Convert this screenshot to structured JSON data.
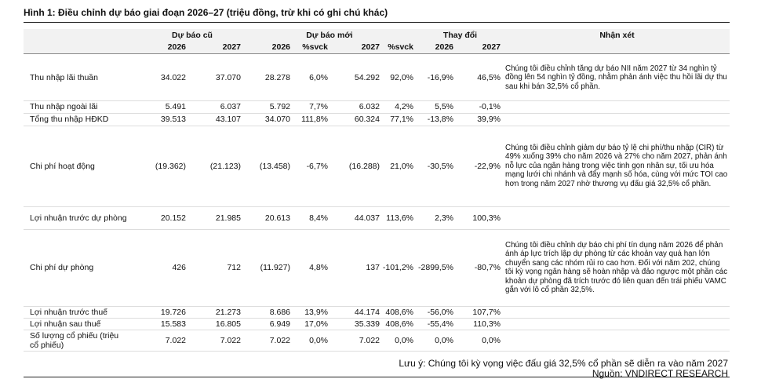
{
  "title": "Hình 1: Điều chỉnh dự báo giai đoạn 2026–27 (triệu đồng, trừ khi có ghi chú khác)",
  "table": {
    "groups": [
      "Dự báo cũ",
      "Dự báo mới",
      "Thay đổi",
      "Nhận xét"
    ],
    "subheaders": [
      "2026",
      "2027",
      "2026",
      "%svck",
      "2027",
      "%svck",
      "2026",
      "2027"
    ],
    "rows": [
      {
        "label": "Thu nhập lãi thuần",
        "cells": [
          "34.022",
          "37.070",
          "28.278",
          "6,0%",
          "54.292",
          "92,0%",
          "-16,9%",
          "46,5%"
        ],
        "comment": "Chúng tôi điều chỉnh tăng dự báo NII năm 2027 từ 34 nghìn tỷ đồng lên 54 nghìn tỷ đồng, nhằm phản ánh việc thu hồi lãi dự thu sau khi bán 32,5% cổ phần."
      },
      {
        "label": "Thu nhập ngoài lãi",
        "cells": [
          "5.491",
          "6.037",
          "5.792",
          "7,7%",
          "6.032",
          "4,2%",
          "5,5%",
          "-0,1%"
        ]
      },
      {
        "label": "Tổng thu nhập HĐKD",
        "cells": [
          "39.513",
          "43.107",
          "34.070",
          "111,8%",
          "60.324",
          "77,1%",
          "-13,8%",
          "39,9%"
        ]
      },
      {
        "label": "Chi phí hoạt động",
        "cells": [
          "(19.362)",
          "(21.123)",
          "(13.458)",
          "-6,7%",
          "(16.288)",
          "21,0%",
          "-30,5%",
          "-22,9%"
        ],
        "comment": "Chúng tôi điều chỉnh giảm dự báo tỷ lệ chi phí/thu nhập (CIR) từ 49% xuống 39% cho năm 2026 và 27% cho năm 2027, phản ánh nỗ lực của ngân hàng trong việc tinh gọn nhân sự, tối ưu hóa mạng lưới chi nhánh và đẩy mạnh số hóa, cùng với mức TOI cao hơn trong năm 2027 nhờ thương vụ đấu giá 32,5% cổ phần."
      },
      {
        "label": "Lợi nhuận trước dự phòng",
        "cells": [
          "20.152",
          "21.985",
          "20.613",
          "8,4%",
          "44.037",
          "113,6%",
          "2,3%",
          "100,3%"
        ]
      },
      {
        "label": "Chi phí dự phòng",
        "cells": [
          "426",
          "712",
          "(11.927)",
          "4,8%",
          "137",
          "-101,2%",
          "-2899,5%",
          "-80,7%"
        ],
        "comment": "Chúng tôi điều chỉnh dự báo chi phí tín dụng năm 2026 để phản ánh áp lực trích lập dự phòng từ các khoản vay quá hạn lớn chuyển sang các nhóm rủi ro cao hơn. Đối với năm 202, chúng tôi kỳ vọng ngân hàng sẽ hoàn nhập và đảo ngược một phần các khoản dự phòng đã trích trước đó liên quan đến trái phiếu VAMC gắn với lô cổ phần 32,5%."
      },
      {
        "label": "Lợi nhuận trước thuế",
        "cells": [
          "19.726",
          "21.273",
          "8.686",
          "13,9%",
          "44.174",
          "408,6%",
          "-56,0%",
          "107,7%"
        ]
      },
      {
        "label": "Lợi nhuận sau thuế",
        "cells": [
          "15.583",
          "16.805",
          "6.949",
          "17,0%",
          "35.339",
          "408,6%",
          "-55,4%",
          "110,3%"
        ]
      },
      {
        "label": "Số lượng cổ phiếu (triệu cổ phiếu)",
        "cells": [
          "7.022",
          "7.022",
          "7.022",
          "0,0%",
          "7.022",
          "0,0%",
          "0,0%",
          "0,0%"
        ]
      }
    ]
  },
  "note": "Lưu ý: Chúng tôi kỳ vọng việc đấu giá 32,5% cổ phần sẽ diễn ra vào năm 2027",
  "source": "Nguồn: VNDIRECT RESEARCH"
}
